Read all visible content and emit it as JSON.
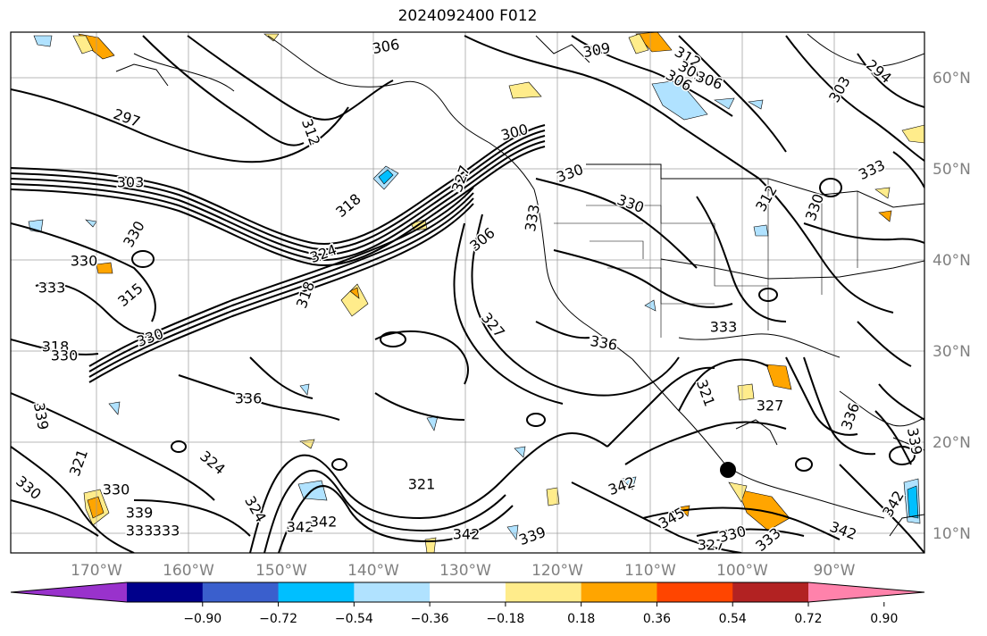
{
  "title": "2024092400 F012",
  "lon_labels": [
    "170°W",
    "160°W",
    "150°W",
    "140°W",
    "130°W",
    "120°W",
    "110°W",
    "100°W",
    "90°W"
  ],
  "lat_labels": [
    "60°N",
    "50°N",
    "40°N",
    "30°N",
    "20°N",
    "10°N"
  ],
  "colorbar": {
    "ticks": [
      "−0.90",
      "−0.72",
      "−0.54",
      "−0.36",
      "−0.18",
      "0.18",
      "0.36",
      "0.54",
      "0.72",
      "0.90"
    ],
    "colors": [
      "#9932cc",
      "#00008b",
      "#3a5fcd",
      "#00bfff",
      "#b0e2ff",
      "#ffffff",
      "#ffec8b",
      "#ffa500",
      "#ff4500",
      "#b22222",
      "#ff82ab"
    ]
  },
  "contour_labels": [
    "306",
    "309",
    "312",
    "309",
    "306",
    "306",
    "303",
    "294",
    "297",
    "312",
    "300",
    "303",
    "318",
    "327",
    "330",
    "330",
    "333",
    "306",
    "312",
    "330",
    "333",
    "330",
    "330",
    "333",
    "315",
    "318",
    "324",
    "327",
    "336",
    "333",
    "327",
    "321",
    "318",
    "330",
    "330",
    "336",
    "339",
    "321",
    "324",
    "330",
    "324",
    "330",
    "339",
    "333",
    "333",
    "342",
    "342",
    "321",
    "342",
    "336",
    "339",
    "342",
    "345",
    "327",
    "330",
    "333",
    "342",
    "339",
    "342"
  ]
}
